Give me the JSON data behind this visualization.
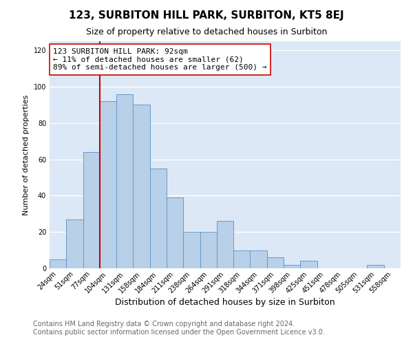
{
  "title": "123, SURBITON HILL PARK, SURBITON, KT5 8EJ",
  "subtitle": "Size of property relative to detached houses in Surbiton",
  "xlabel": "Distribution of detached houses by size in Surbiton",
  "ylabel": "Number of detached properties",
  "footer_line1": "Contains HM Land Registry data © Crown copyright and database right 2024.",
  "footer_line2": "Contains public sector information licensed under the Open Government Licence v3.0.",
  "bar_labels": [
    "24sqm",
    "51sqm",
    "77sqm",
    "104sqm",
    "131sqm",
    "158sqm",
    "184sqm",
    "211sqm",
    "238sqm",
    "264sqm",
    "291sqm",
    "318sqm",
    "344sqm",
    "371sqm",
    "398sqm",
    "425sqm",
    "451sqm",
    "478sqm",
    "505sqm",
    "531sqm",
    "558sqm"
  ],
  "bar_values": [
    5,
    27,
    64,
    92,
    96,
    90,
    55,
    39,
    20,
    20,
    26,
    10,
    10,
    6,
    2,
    4,
    0,
    0,
    0,
    2,
    0
  ],
  "bar_color": "#b8d0e8",
  "bar_edge_color": "#6699cc",
  "plot_bg_color": "#dce8f5",
  "fig_bg_color": "#ffffff",
  "grid_color": "#ffffff",
  "vline_color": "#cc0000",
  "vline_x_index": 3,
  "annotation_text": "123 SURBITON HILL PARK: 92sqm\n← 11% of detached houses are smaller (62)\n89% of semi-detached houses are larger (500) →",
  "annotation_box_edge_color": "#cc0000",
  "annotation_bg_color": "#ffffff",
  "ylim": [
    0,
    125
  ],
  "yticks": [
    0,
    20,
    40,
    60,
    80,
    100,
    120
  ],
  "title_fontsize": 11,
  "subtitle_fontsize": 9,
  "xlabel_fontsize": 9,
  "ylabel_fontsize": 8,
  "footer_fontsize": 7,
  "tick_fontsize": 7
}
